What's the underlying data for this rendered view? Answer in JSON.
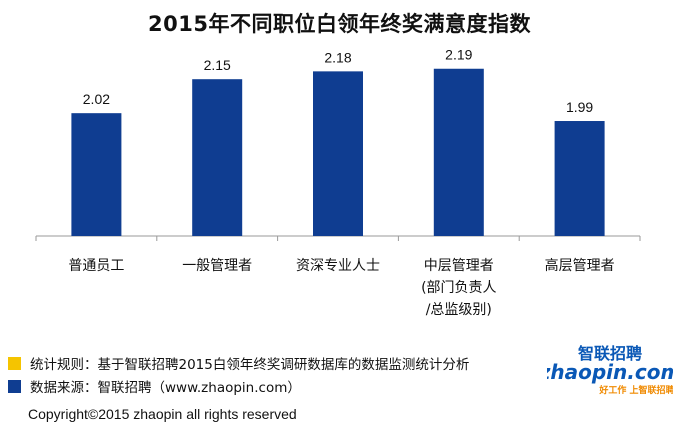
{
  "title": "2015年不同职位白领年终奖满意度指数",
  "chart_data": {
    "type": "bar",
    "categories": [
      "普通员工",
      "一般管理者",
      "资深专业人士",
      "中层管理者\n(部门负责人\n/总监级别)",
      "高层管理者"
    ],
    "values": [
      2.02,
      2.15,
      2.18,
      2.19,
      1.99
    ],
    "data_labels": [
      "2.02",
      "2.15",
      "2.18",
      "2.19",
      "1.99"
    ],
    "ylim": [
      1.55,
      2.3
    ],
    "bar_color": "#0f3d91",
    "axis_color": "#9a9a9a",
    "grid": false,
    "legend": "none"
  },
  "notes": [
    {
      "text": "统计规则：基于智联招聘2015白领年终奖调研数据库的数据监测统计分析",
      "color": "#f5c400"
    },
    {
      "text": "数据来源：智联招聘（www.zhaopin.com）",
      "color": "#0f3d91"
    }
  ],
  "logo": {
    "cn_name": "智联招聘",
    "wordmark": "zhaopin.com",
    "tagline": "好工作 上智联招聘",
    "colors": {
      "blue": "#0a58b6",
      "orange": "#f08a00"
    }
  },
  "copyright": "Copyright©2015 zhaopin all rights reserved"
}
